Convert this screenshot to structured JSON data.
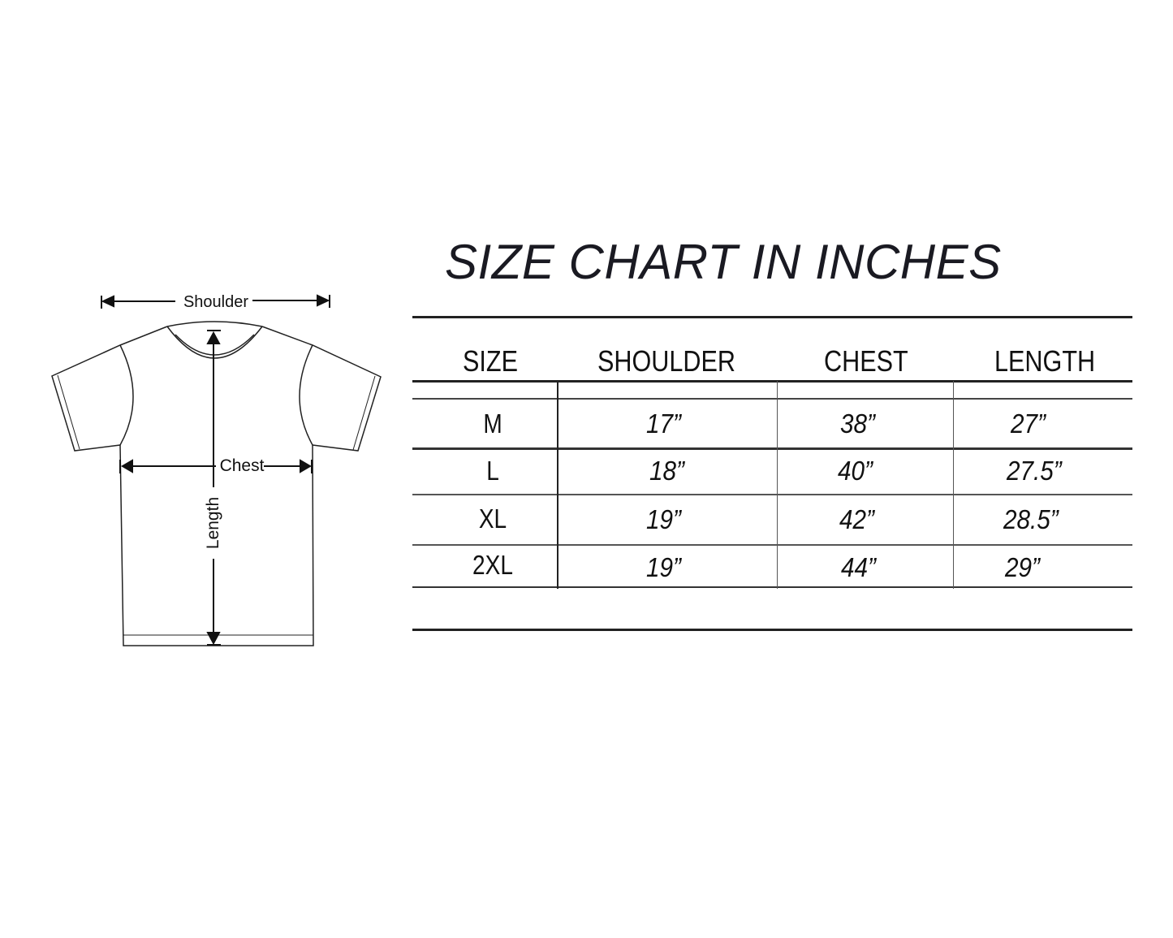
{
  "title": "SIZE CHART IN INCHES",
  "diagram": {
    "labels": {
      "shoulder": "Shoulder",
      "chest": "Chest",
      "length": "Length"
    }
  },
  "table": {
    "headers": [
      "SIZE",
      "SHOULDER",
      "CHEST",
      "LENGTH"
    ],
    "rows": [
      {
        "size": "M",
        "shoulder": "17”",
        "chest": "38”",
        "length": "27”"
      },
      {
        "size": "L",
        "shoulder": "18”",
        "chest": "40”",
        "length": "27.5”"
      },
      {
        "size": "XL",
        "shoulder": "19”",
        "chest": "42”",
        "length": "28.5”"
      },
      {
        "size": "2XL",
        "shoulder": "19”",
        "chest": "44”",
        "length": "29”"
      }
    ]
  }
}
